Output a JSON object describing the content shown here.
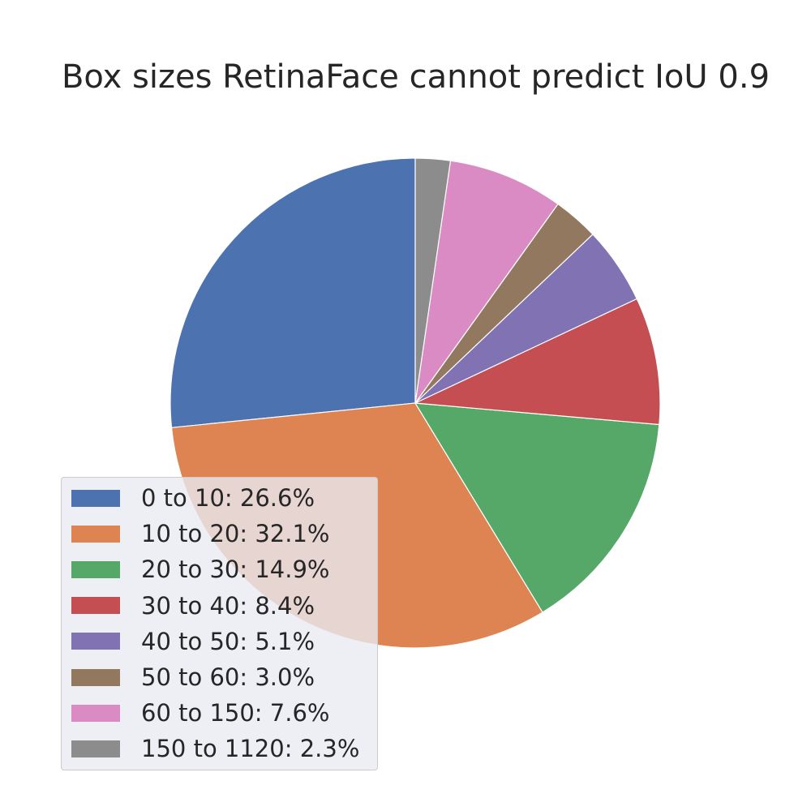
{
  "chart_data": {
    "type": "pie",
    "title": "Box sizes RetinaFace cannot predict IoU 0.9",
    "start_angle": "top, counter-clockwise",
    "legend_position": "lower-left",
    "slices": [
      {
        "label": "0 to 10: 26.6%",
        "value": 26.6,
        "color": "#4c72b0"
      },
      {
        "label": "10 to 20: 32.1%",
        "value": 32.1,
        "color": "#dd8452"
      },
      {
        "label": "20 to 30: 14.9%",
        "value": 14.9,
        "color": "#55a868"
      },
      {
        "label": "30 to 40: 8.4%",
        "value": 8.4,
        "color": "#c44e52"
      },
      {
        "label": "40 to 50: 5.1%",
        "value": 5.1,
        "color": "#8172b3"
      },
      {
        "label": "50 to 60: 3.0%",
        "value": 3.0,
        "color": "#937860"
      },
      {
        "label": "60 to 150: 7.6%",
        "value": 7.6,
        "color": "#da8bc3"
      },
      {
        "label": "150 to 1120: 2.3%",
        "value": 2.3,
        "color": "#8c8c8c"
      }
    ]
  }
}
